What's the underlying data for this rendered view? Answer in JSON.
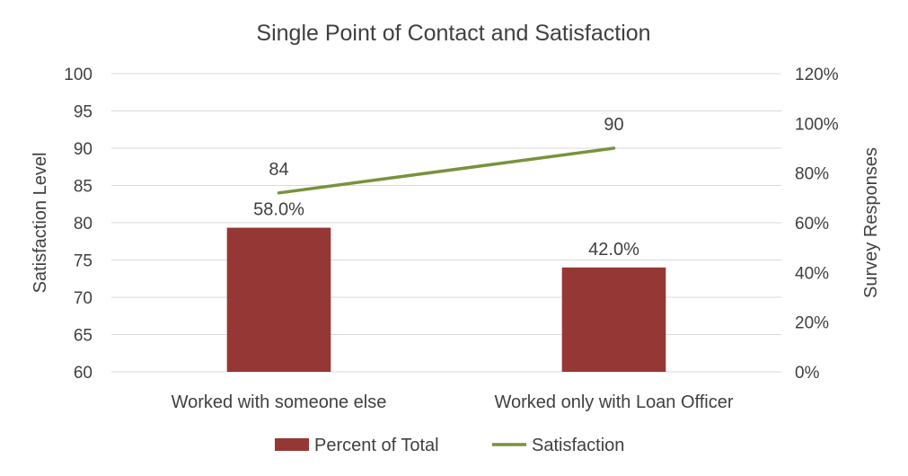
{
  "chart_data": {
    "type": "bar",
    "title": "Single Point of Contact and Satisfaction",
    "categories": [
      "Worked with someone else",
      "Worked only with Loan Officer"
    ],
    "series": [
      {
        "name": "Percent of Total",
        "type": "bar",
        "axis": "right",
        "values": [
          58.0,
          42.0
        ],
        "labels": [
          "58.0%",
          "42.0%"
        ],
        "color": "#953735"
      },
      {
        "name": "Satisfaction",
        "type": "line",
        "axis": "left",
        "values": [
          84,
          90
        ],
        "labels": [
          "84",
          "90"
        ],
        "color": "#77933C"
      }
    ],
    "ylabel": "Satisfaction Level",
    "ylabel_right": "Survey Responses",
    "ylim": [
      60,
      100
    ],
    "y_ticks": [
      "60",
      "65",
      "70",
      "75",
      "80",
      "85",
      "90",
      "95",
      "100"
    ],
    "ylim_right": [
      0,
      120
    ],
    "y_right_ticks": [
      "0%",
      "20%",
      "40%",
      "60%",
      "80%",
      "100%",
      "120%"
    ],
    "grid": true,
    "legend_position": "bottom",
    "gridline_color": "#D9D9D9"
  }
}
